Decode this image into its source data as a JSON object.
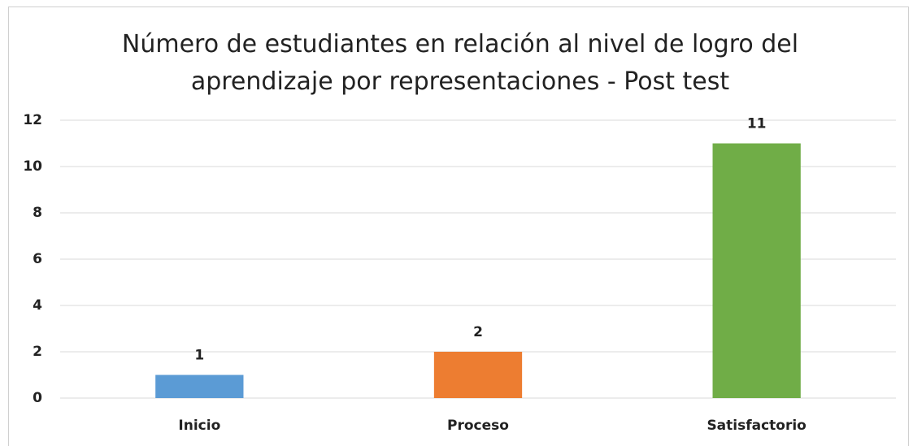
{
  "chart_data": {
    "type": "bar",
    "title": "Número de estudiantes en relación al nivel de logro del aprendizaje por representaciones - Post test",
    "categories": [
      "Inicio",
      "Proceso",
      "Satisfactorio"
    ],
    "values": [
      1,
      2,
      11
    ],
    "colors": [
      "#5b9bd5",
      "#ed7d31",
      "#70ad47"
    ],
    "ylim": [
      0,
      12
    ],
    "yticks": [
      0,
      2,
      4,
      6,
      8,
      10,
      12
    ],
    "grid": true
  }
}
